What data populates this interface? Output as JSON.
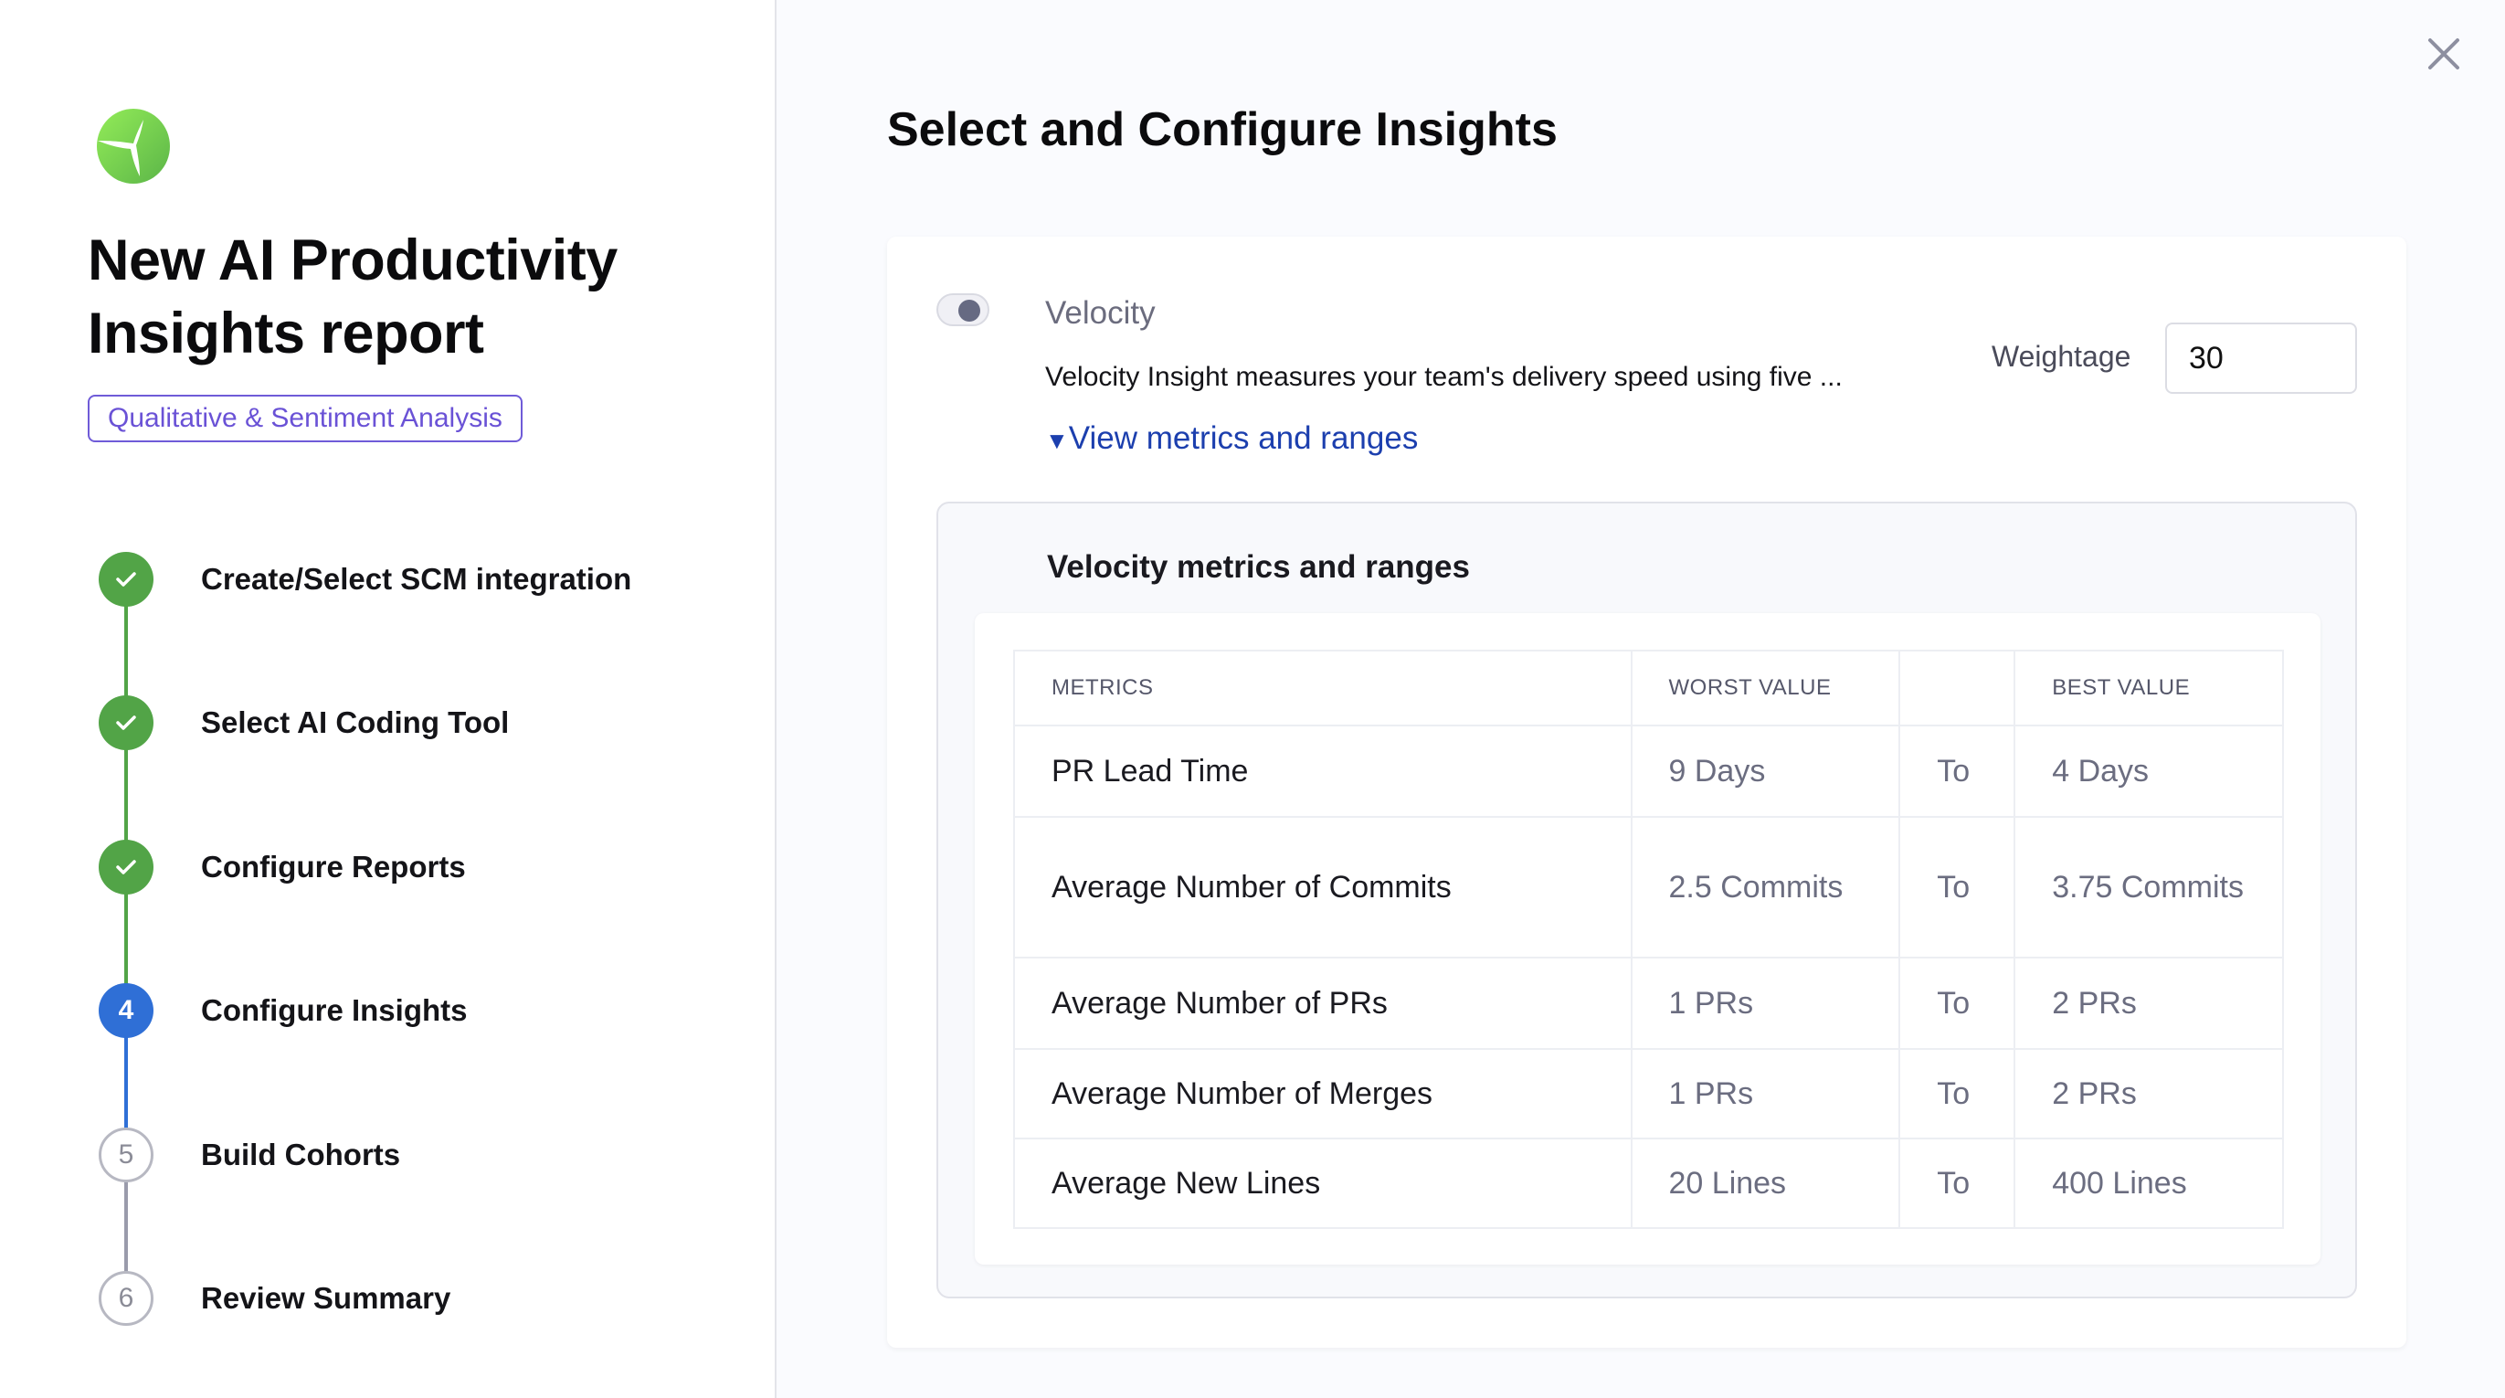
{
  "sidebar": {
    "title": "New AI Productivity Insights report",
    "badge": "Qualitative & Sentiment Analysis",
    "steps": [
      {
        "label": "Create/Select SCM integration",
        "status": "done",
        "number": "1"
      },
      {
        "label": "Select AI Coding Tool",
        "status": "done",
        "number": "2"
      },
      {
        "label": "Configure Reports",
        "status": "done",
        "number": "3"
      },
      {
        "label": "Configure Insights",
        "status": "current",
        "number": "4"
      },
      {
        "label": "Build Cohorts",
        "status": "todo",
        "number": "5"
      },
      {
        "label": "Review Summary",
        "status": "todo",
        "number": "6"
      }
    ]
  },
  "main": {
    "heading": "Select and Configure Insights",
    "insight": {
      "name": "Velocity",
      "enabled": false,
      "description": "Velocity Insight measures your team's delivery speed using five ...",
      "weightage_label": "Weightage",
      "weightage": "30",
      "link": "View metrics and ranges",
      "panel_title": "Velocity metrics and ranges",
      "columns": [
        "METRICS",
        "WORST VALUE",
        "",
        "BEST VALUE"
      ],
      "rows": [
        [
          "PR Lead Time",
          "9 Days",
          "To",
          "4 Days"
        ],
        [
          "Average Number of Commits",
          "2.5 Commits",
          "To",
          "3.75 Commits"
        ],
        [
          "Average Number of PRs",
          "1 PRs",
          "To",
          "2 PRs"
        ],
        [
          "Average Number of Merges",
          "1 PRs",
          "To",
          "2 PRs"
        ],
        [
          "Average New Lines",
          "20 Lines",
          "To",
          "400 Lines"
        ]
      ]
    }
  },
  "colors": {
    "done": "#52a447",
    "current": "#2f6fd6",
    "badge": "#6a52d6",
    "link": "#1c3fae"
  }
}
